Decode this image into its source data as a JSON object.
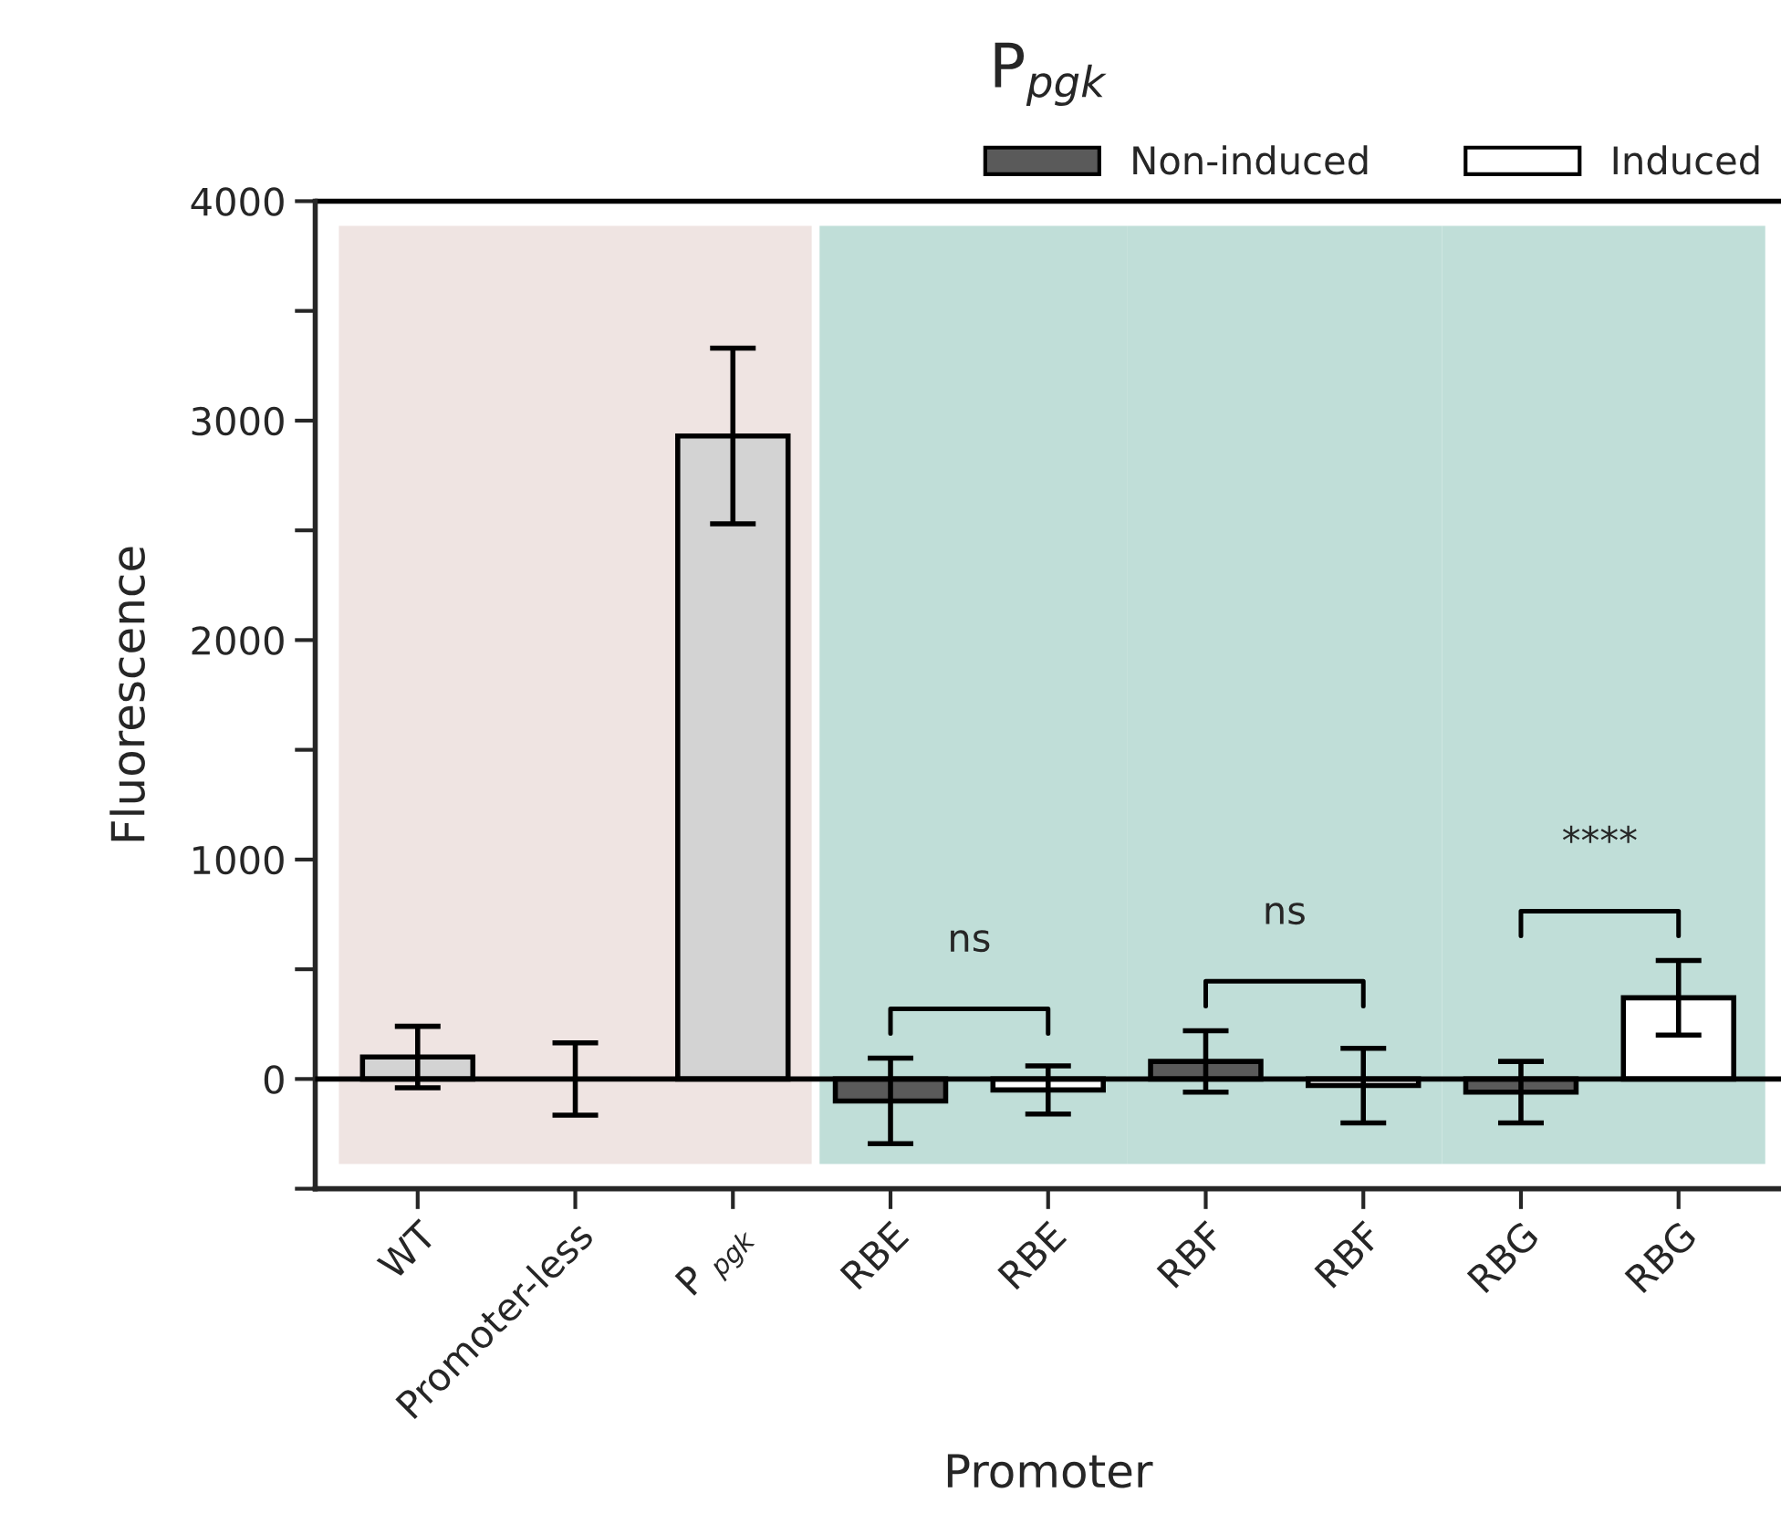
{
  "chart_data": {
    "type": "bar",
    "title": "P$_{pgk}$",
    "xlabel": "Promoter",
    "ylabel": "Fluorescence",
    "categories": [
      "WT",
      "Promoter-less",
      "P $_{pgk}$",
      "RBE",
      "RBE",
      "RBF",
      "RBF",
      "RBG",
      "RBG"
    ],
    "series": [
      {
        "color": "#d3d3d3",
        "values": [
          100,
          0,
          2930,
          null,
          null,
          null,
          null,
          null,
          null
        ],
        "errors": [
          140,
          165,
          400,
          null,
          null,
          null,
          null,
          null,
          null
        ]
      },
      {
        "name": "Non-induced",
        "color": "#5a5a5a",
        "values": [
          null,
          null,
          null,
          -100,
          null,
          80,
          null,
          -60,
          null
        ],
        "errors": [
          null,
          null,
          null,
          195,
          null,
          140,
          null,
          140,
          null
        ]
      },
      {
        "name": "Induced",
        "color": "#ffffff",
        "values": [
          null,
          null,
          null,
          null,
          -50,
          null,
          -30,
          null,
          370
        ],
        "errors": [
          null,
          null,
          null,
          null,
          110,
          null,
          170,
          null,
          170
        ]
      }
    ],
    "ylim": [
      -500,
      4000
    ],
    "yticks": [
      {
        "value": -500,
        "label": null
      },
      0,
      {
        "value": 500,
        "label": null
      },
      1000,
      {
        "value": 1500,
        "label": null
      },
      2000,
      {
        "value": 2500,
        "label": null
      },
      3000,
      {
        "value": 3500,
        "label": null
      },
      4000
    ],
    "ref_lines": [
      {
        "axis": "y",
        "value": 0
      }
    ],
    "annotations": [
      "ns",
      "ns",
      "****"
    ],
    "legend": "top right",
    "grid": false
  }
}
